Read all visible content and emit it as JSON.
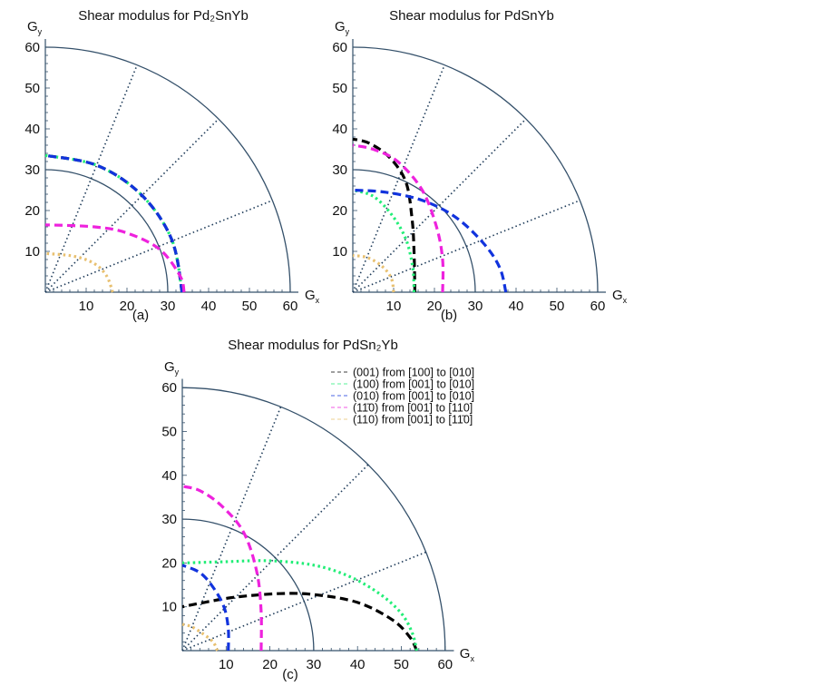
{
  "chart_data": [
    {
      "type": "line",
      "subtype": "polar-quadrant",
      "title": "Shear modulus for Pd₂SnYb",
      "caption": "(a)",
      "xlabel": "Gx",
      "ylabel": "Gy",
      "xlim": [
        0,
        60
      ],
      "ylim": [
        0,
        60
      ],
      "ticks": [
        "10",
        "20",
        "30",
        "40",
        "50",
        "60"
      ],
      "reference_arcs": [
        30,
        60
      ],
      "reference_rays_deg": [
        22,
        45,
        68
      ],
      "series": [
        {
          "name": "(001) from [100] to [010]",
          "color": "#000000",
          "style": "dashed",
          "points": [
            [
              33.5,
              0
            ],
            [
              31,
              12.8
            ],
            [
              23.7,
              23.7
            ],
            [
              12.8,
              31
            ],
            [
              0,
              33.5
            ]
          ]
        },
        {
          "name": "(100) from [001] to [010]",
          "color": "#22ee77",
          "style": "dotted",
          "points": [
            [
              33.5,
              0
            ],
            [
              31,
              12.8
            ],
            [
              23.7,
              23.7
            ],
            [
              12.8,
              31
            ],
            [
              0,
              33.5
            ]
          ]
        },
        {
          "name": "(010) from [001] to [010]",
          "color": "#1133dd",
          "style": "dashed",
          "points": [
            [
              33.5,
              0
            ],
            [
              31,
              12.8
            ],
            [
              23.7,
              23.7
            ],
            [
              12.8,
              31
            ],
            [
              0,
              33.5
            ]
          ]
        },
        {
          "name": "(11̄0) from [001] to [110]",
          "color": "#ee22dd",
          "style": "dashed",
          "points": [
            [
              34,
              0
            ],
            [
              33,
              4
            ],
            [
              28,
              10.5
            ],
            [
              20,
              14.5
            ],
            [
              12,
              16
            ],
            [
              0,
              16.5
            ]
          ]
        },
        {
          "name": "(110) from [001] to [11̄0]",
          "color": "#e8c070",
          "style": "dotted",
          "points": [
            [
              16.5,
              0
            ],
            [
              15,
              4
            ],
            [
              12,
              7
            ],
            [
              7,
              8.8
            ],
            [
              0,
              9.5
            ]
          ]
        }
      ]
    },
    {
      "type": "line",
      "subtype": "polar-quadrant",
      "title": "Shear modulus for PdSnYb",
      "caption": "(b)",
      "xlabel": "Gx",
      "ylabel": "Gy",
      "xlim": [
        0,
        60
      ],
      "ylim": [
        0,
        60
      ],
      "ticks": [
        "10",
        "20",
        "30",
        "40",
        "50",
        "60"
      ],
      "reference_arcs": [
        30,
        60
      ],
      "reference_rays_deg": [
        22,
        45,
        68
      ],
      "series": [
        {
          "name": "(001) from [100] to [010]",
          "color": "#000000",
          "style": "dashed",
          "points": [
            [
              15.2,
              0
            ],
            [
              15,
              10
            ],
            [
              14.5,
              18
            ],
            [
              13,
              27
            ],
            [
              9,
              33
            ],
            [
              4,
              36.5
            ],
            [
              0,
              37.5
            ]
          ]
        },
        {
          "name": "(100) from [001] to [010]",
          "color": "#22ee77",
          "style": "dotted",
          "points": [
            [
              15,
              0
            ],
            [
              14.7,
              6
            ],
            [
              13,
              13
            ],
            [
              9.5,
              19
            ],
            [
              5,
              23.5
            ],
            [
              0,
              25
            ]
          ]
        },
        {
          "name": "(010) from [001] to [010]",
          "color": "#1133dd",
          "style": "dashed",
          "points": [
            [
              37.5,
              0
            ],
            [
              36,
              6
            ],
            [
              32,
              12
            ],
            [
              25,
              18.5
            ],
            [
              17,
              22.5
            ],
            [
              8,
              24.5
            ],
            [
              0,
              25
            ]
          ]
        },
        {
          "name": "(11̄0) from [001] to [110]",
          "color": "#ee22dd",
          "style": "dashed",
          "points": [
            [
              22,
              0
            ],
            [
              22,
              8
            ],
            [
              20.5,
              16
            ],
            [
              17,
              25
            ],
            [
              11,
              32
            ],
            [
              5,
              35
            ],
            [
              0,
              36
            ]
          ]
        },
        {
          "name": "(110) from [001] to [11̄0]",
          "color": "#e8c070",
          "style": "dotted",
          "points": [
            [
              10,
              0
            ],
            [
              9.4,
              3.5
            ],
            [
              7,
              6.5
            ],
            [
              3.5,
              8.5
            ],
            [
              0,
              9
            ]
          ]
        }
      ]
    },
    {
      "type": "line",
      "subtype": "polar-quadrant",
      "title": "Shear modulus for PdSn₂Yb",
      "caption": "(c)",
      "xlabel": "Gx",
      "ylabel": "Gy",
      "xlim": [
        0,
        60
      ],
      "ylim": [
        0,
        60
      ],
      "ticks": [
        "10",
        "20",
        "30",
        "40",
        "50",
        "60"
      ],
      "reference_arcs": [
        30,
        60
      ],
      "reference_rays_deg": [
        22,
        45,
        68
      ],
      "legend": "top-right",
      "series": [
        {
          "name": "(001) from [100] to [010]",
          "color": "#000000",
          "style": "dashed",
          "points": [
            [
              53.5,
              0
            ],
            [
              52,
              3
            ],
            [
              48,
              7
            ],
            [
              40,
              11
            ],
            [
              30,
              12.8
            ],
            [
              22,
              13
            ],
            [
              12,
              12.2
            ],
            [
              5,
              11
            ],
            [
              0,
              10
            ]
          ]
        },
        {
          "name": "(100) from [001] to [010]",
          "color": "#22ee77",
          "style": "dotted",
          "points": [
            [
              53.5,
              0
            ],
            [
              52.5,
              4
            ],
            [
              50,
              8.5
            ],
            [
              45,
              13
            ],
            [
              38,
              17
            ],
            [
              30,
              19.5
            ],
            [
              20,
              20.5
            ],
            [
              10,
              20.3
            ],
            [
              0,
              20
            ]
          ]
        },
        {
          "name": "(010) from [001] to [010]",
          "color": "#1133dd",
          "style": "dashed",
          "points": [
            [
              10.5,
              0
            ],
            [
              10.5,
              5
            ],
            [
              9.5,
              10
            ],
            [
              7,
              14.5
            ],
            [
              4,
              17.8
            ],
            [
              0,
              19.5
            ]
          ]
        },
        {
          "name": "(11̄0) from [001] to [110]",
          "color": "#ee22dd",
          "style": "dashed",
          "points": [
            [
              18,
              0
            ],
            [
              18,
              9
            ],
            [
              17,
              18
            ],
            [
              14,
              27
            ],
            [
              9,
              33
            ],
            [
              4,
              36.5
            ],
            [
              0,
              37.5
            ]
          ]
        },
        {
          "name": "(110) from [001] to [11̄0]",
          "color": "#e8c070",
          "style": "dotted",
          "points": [
            [
              8,
              0
            ],
            [
              7,
              2
            ],
            [
              4.5,
              4
            ],
            [
              2,
              5.5
            ],
            [
              0,
              6
            ]
          ]
        }
      ]
    }
  ]
}
